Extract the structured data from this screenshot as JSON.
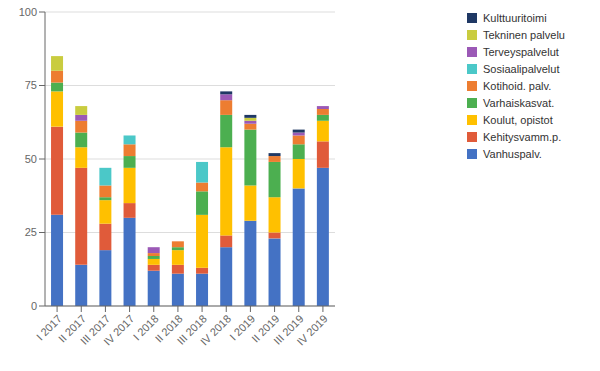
{
  "chart_data": {
    "type": "bar",
    "stacked": true,
    "grid": true,
    "legend": "right",
    "categories": [
      "I 2017",
      "II 2017",
      "III 2017",
      "IV 2017",
      "I 2018",
      "II 2018",
      "III 2018",
      "IV 2018",
      "I 2019",
      "II 2019",
      "III 2019",
      "IV 2019"
    ],
    "series": [
      {
        "name": "Vanhuspalv.",
        "color": "#4472C4",
        "values": [
          31,
          14,
          19,
          30,
          12,
          11,
          11,
          20,
          29,
          23,
          40,
          47
        ]
      },
      {
        "name": "Kehitysvamm.p.",
        "color": "#E05B3A",
        "values": [
          30,
          33,
          9,
          5,
          2,
          3,
          2,
          4,
          0,
          2,
          0,
          9
        ]
      },
      {
        "name": "Koulut, opistot",
        "color": "#FFC000",
        "values": [
          12,
          7,
          8,
          12,
          2,
          5,
          18,
          30,
          12,
          12,
          10,
          7
        ]
      },
      {
        "name": "Varhaiskasvat.",
        "color": "#4CAF50",
        "values": [
          3,
          5,
          1,
          4,
          1,
          1,
          8,
          11,
          19,
          12,
          5,
          2
        ]
      },
      {
        "name": "Kotihoid. palv.",
        "color": "#ED7D31",
        "values": [
          4,
          4,
          4,
          4,
          1,
          2,
          3,
          5,
          2,
          2,
          3,
          2
        ]
      },
      {
        "name": "Sosiaalipalvelut",
        "color": "#4BC8C8",
        "values": [
          0,
          0,
          6,
          3,
          0,
          0,
          7,
          0,
          0,
          0,
          0,
          0
        ]
      },
      {
        "name": "Terveyspalvelut",
        "color": "#9B59B6",
        "values": [
          0,
          2,
          0,
          0,
          2,
          0,
          0,
          2,
          1,
          0,
          1,
          1
        ]
      },
      {
        "name": "Tekninen palvelu",
        "color": "#C9CC3F",
        "values": [
          5,
          3,
          0,
          0,
          0,
          0,
          0,
          0,
          1,
          0,
          0,
          0
        ]
      },
      {
        "name": "Kulttuuritoimi",
        "color": "#1F3864",
        "values": [
          0,
          0,
          0,
          0,
          0,
          0,
          0,
          1,
          1,
          1,
          1,
          0
        ]
      }
    ],
    "ylim": [
      0,
      100
    ],
    "yticks": [
      0,
      25,
      50,
      75,
      100
    ]
  }
}
